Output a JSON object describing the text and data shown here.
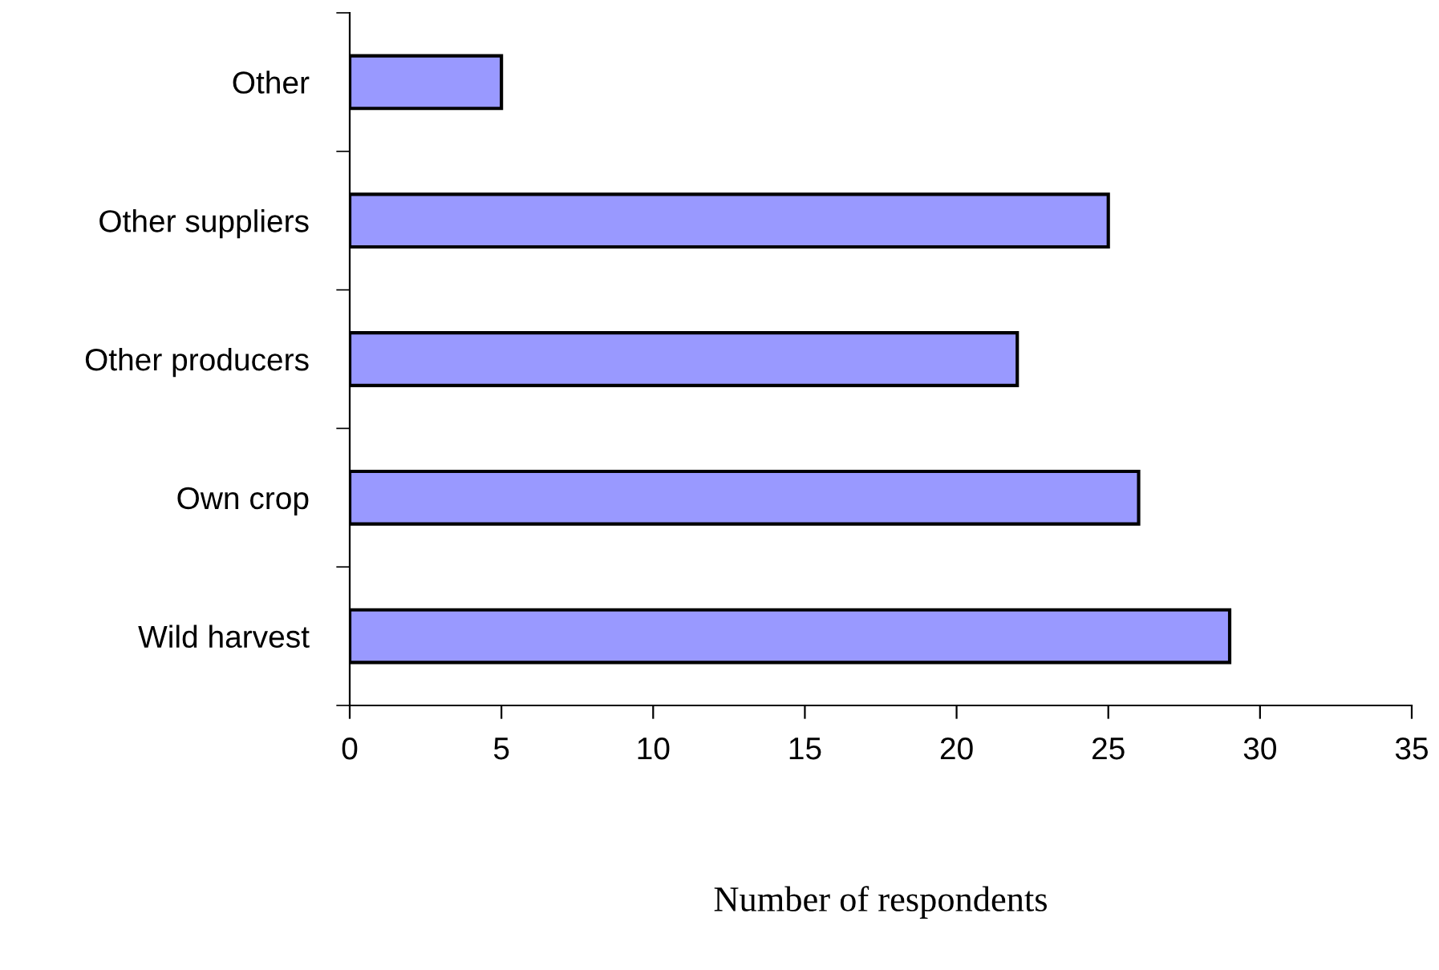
{
  "chart_data": {
    "type": "bar",
    "orientation": "horizontal",
    "xlabel": "Number of respondents",
    "categories": [
      "Other",
      "Other suppliers",
      "Other producers",
      "Own crop",
      "Wild harvest"
    ],
    "values": [
      5,
      25,
      22,
      26,
      29
    ],
    "color": "#9999ff",
    "xlim": [
      0,
      35
    ],
    "xticks": [
      0,
      5,
      10,
      15,
      20,
      25,
      30,
      35
    ],
    "grid": false,
    "legend": false
  }
}
